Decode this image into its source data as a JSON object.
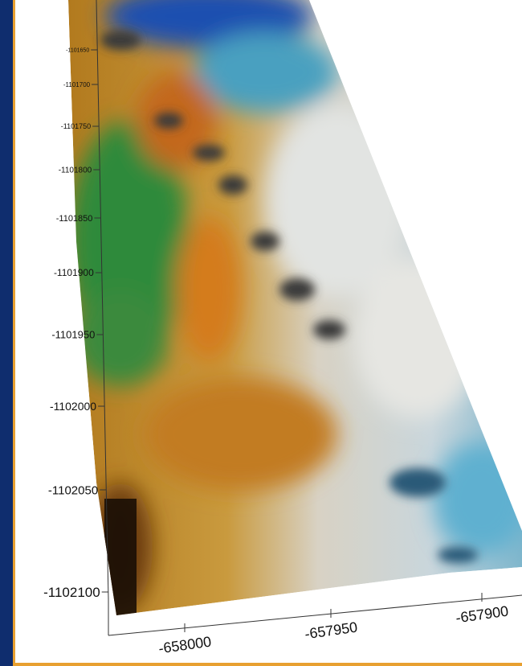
{
  "y_axis": {
    "labels": [
      "-1101650",
      "-1101700",
      "-1101750",
      "-1101800",
      "-1101850",
      "-1101900",
      "-1101950",
      "-1102000",
      "-1102050",
      "-1102100"
    ]
  },
  "x_axis": {
    "labels": [
      "-658000",
      "-657950",
      "-657900"
    ]
  }
}
